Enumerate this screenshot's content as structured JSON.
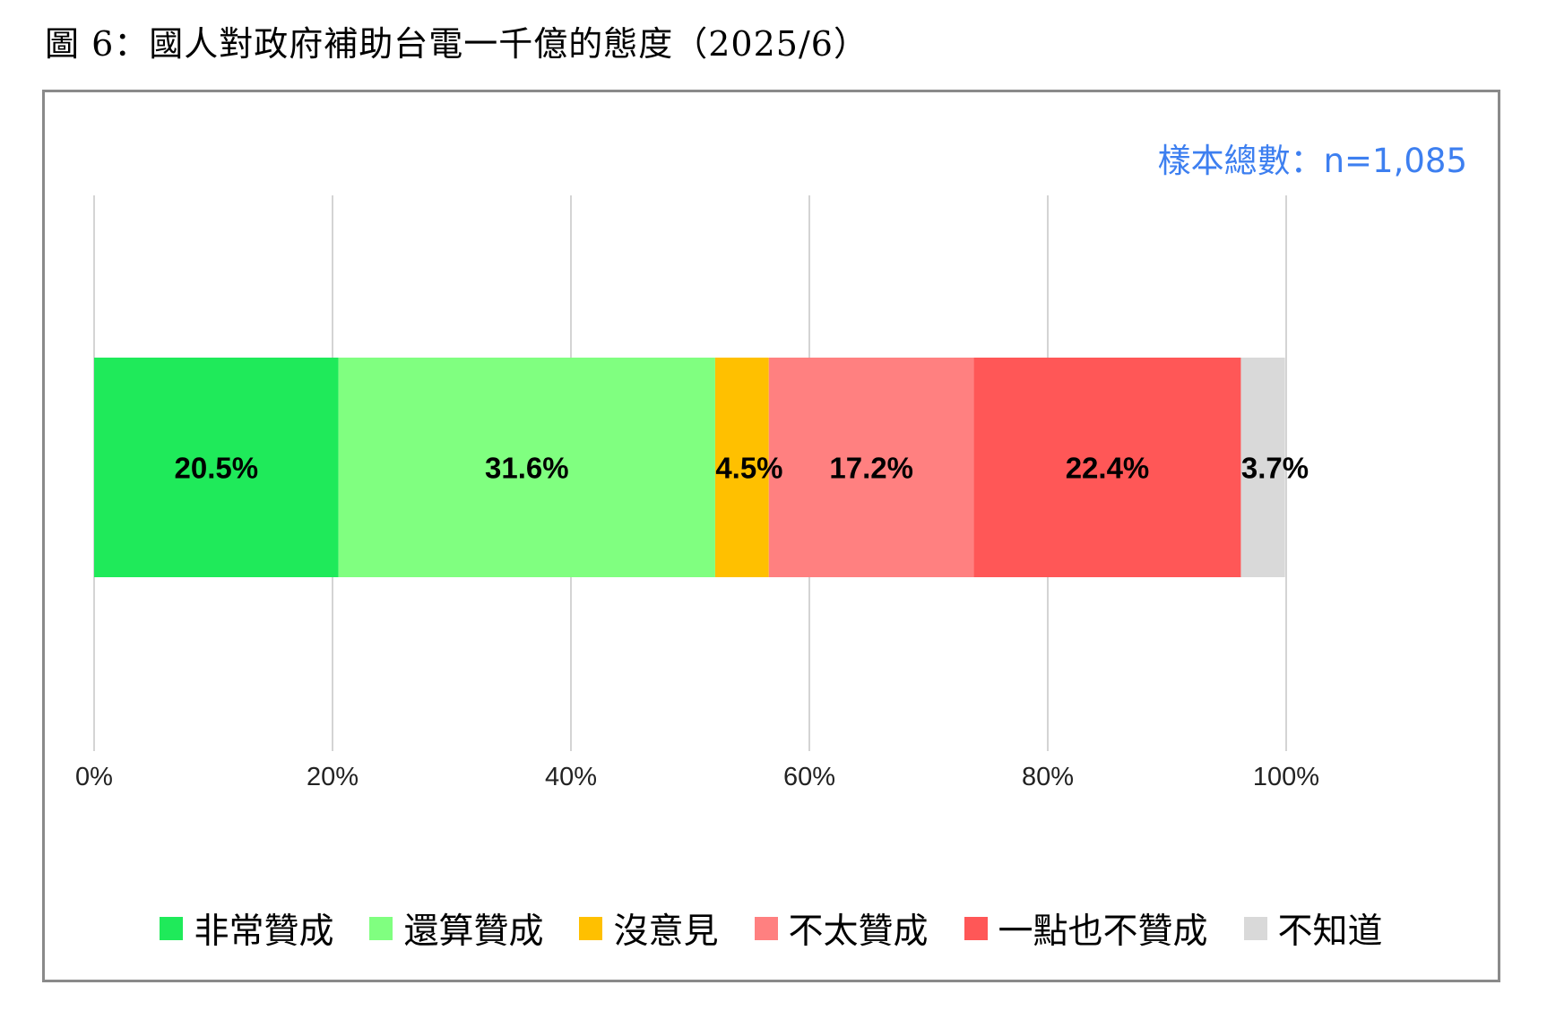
{
  "title": "圖 6：國人對政府補助台電一千億的態度（2025/6）",
  "sample_size": "樣本總數：n=1,085",
  "colors": {
    "sample_text": "#3d7ff0",
    "grid": "#d4d4d4",
    "label_text": "#000000"
  },
  "chart_data": {
    "type": "bar",
    "orientation": "horizontal",
    "stacked": true,
    "x_ticks": [
      "0%",
      "20%",
      "40%",
      "60%",
      "80%",
      "100%"
    ],
    "xlim": [
      0,
      100
    ],
    "grid": true,
    "legend_position": "bottom",
    "series": [
      {
        "name": "非常贊成",
        "value": 20.5,
        "label": "20.5%",
        "color": "#1fea5a"
      },
      {
        "name": "還算贊成",
        "value": 31.6,
        "label": "31.6%",
        "color": "#80ff80"
      },
      {
        "name": "沒意見",
        "value": 4.5,
        "label": "4.5%",
        "color": "#ffc000"
      },
      {
        "name": "不太贊成",
        "value": 17.2,
        "label": "17.2%",
        "color": "#ff8080"
      },
      {
        "name": "一點也不贊成",
        "value": 22.4,
        "label": "22.4%",
        "color": "#ff5757"
      },
      {
        "name": "不知道",
        "value": 3.7,
        "label": "3.7%",
        "color": "#d9d9d9"
      }
    ]
  }
}
